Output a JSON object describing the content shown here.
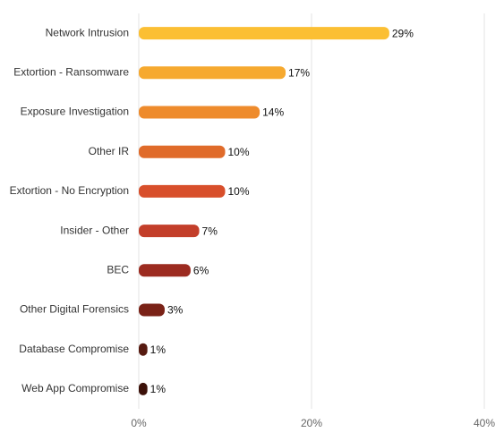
{
  "chart_data": {
    "type": "hbar",
    "categories": [
      "Network Intrusion",
      "Extortion - Ransomware",
      "Exposure Investigation",
      "Other IR",
      "Extortion - No Encryption",
      "Insider - Other",
      "BEC",
      "Other Digital Forensics",
      "Database Compromise",
      "Web App Compromise"
    ],
    "values": [
      29,
      17,
      14,
      10,
      10,
      7,
      6,
      3,
      1,
      1
    ],
    "value_labels": [
      "29%",
      "17%",
      "14%",
      "10%",
      "10%",
      "7%",
      "6%",
      "3%",
      "1%",
      "1%"
    ],
    "colors": [
      "#FBBF33",
      "#F6A92F",
      "#EE8B2C",
      "#E06B2A",
      "#D84F2B",
      "#C33E2A",
      "#9C2B20",
      "#7A2217",
      "#561A10",
      "#3C1109"
    ],
    "xlim": [
      0,
      40
    ],
    "xticks": [
      {
        "value": 0,
        "label": "0%"
      },
      {
        "value": 20,
        "label": "20%"
      },
      {
        "value": 40,
        "label": "40%"
      }
    ],
    "grid": true
  }
}
